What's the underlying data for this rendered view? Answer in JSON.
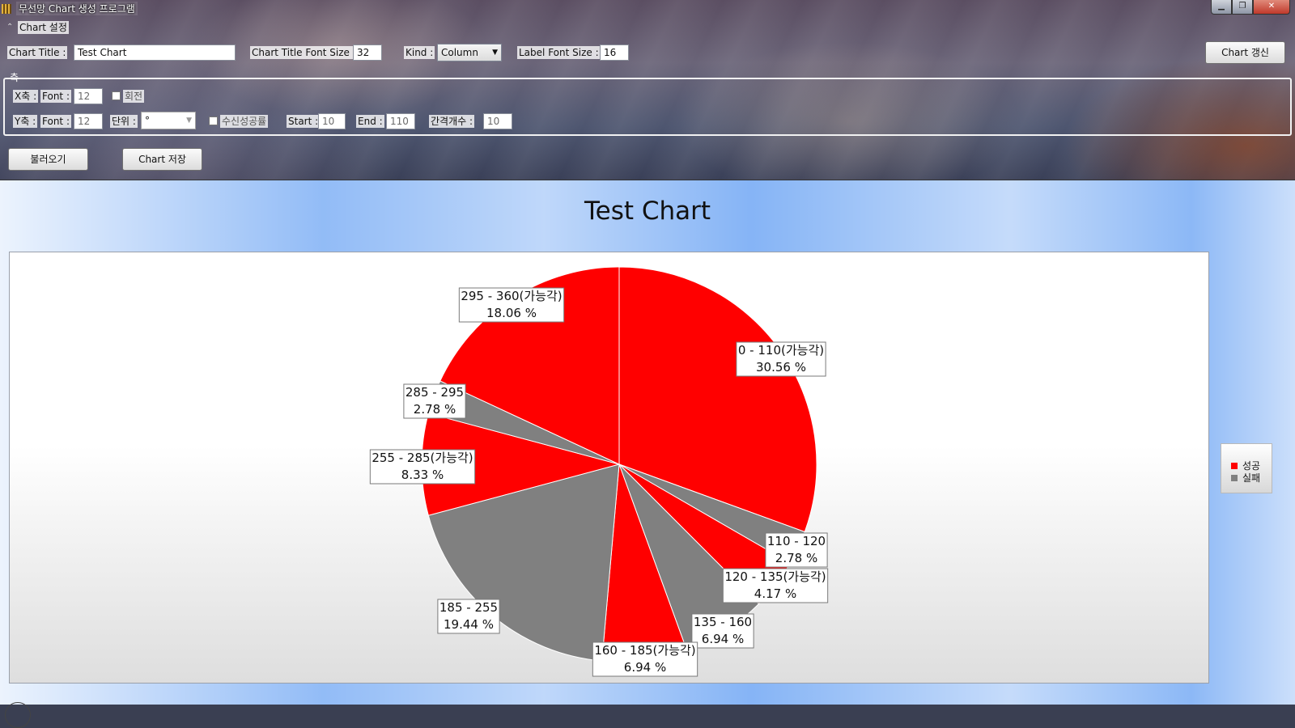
{
  "window": {
    "title": "무선망 Chart 생성 프로그램",
    "buttons": {
      "minimize": "▁",
      "restore": "❐",
      "close": "✕"
    }
  },
  "settings": {
    "expander_label": "Chart 설정",
    "chart_title_label": "Chart Title :",
    "chart_title_value": "Test Chart",
    "title_font_size_label": "Chart Title Font Size :",
    "title_font_size_value": "32",
    "kind_label": "Kind :",
    "kind_value": "Column",
    "label_font_size_label": "Label Font Size :",
    "label_font_size_value": "16",
    "refresh_button": "Chart 갱신"
  },
  "axis": {
    "group_label": "축",
    "x_label": "X축 :",
    "x_font_label": "Font :",
    "x_font_value": "12",
    "x_rotate_label": "회전",
    "y_label": "Y축 :",
    "y_font_label": "Font :",
    "y_font_value": "12",
    "unit_label": "단위 :",
    "unit_value": "°",
    "rx_success_label": "수신성공률",
    "start_label": "Start :",
    "start_value": "10",
    "end_label": "End :",
    "end_value": "110",
    "interval_label": "간격개수 :",
    "interval_value": "10"
  },
  "actions": {
    "load_button": "불러오기",
    "save_button": "Chart 저장"
  },
  "colors": {
    "success": "#ff0000",
    "failure": "#808080"
  },
  "chart_data": {
    "type": "pie",
    "title": "Test Chart",
    "start_angle_deg": 0,
    "legend": {
      "position": "right",
      "entries": [
        {
          "name": "성공",
          "color": "#ff0000"
        },
        {
          "name": "실패",
          "color": "#808080"
        }
      ]
    },
    "slices": [
      {
        "label": "0 - 110(가능각)",
        "value": 30.56,
        "pct_text": "30.56 %",
        "status": "성공"
      },
      {
        "label": "110 - 120",
        "value": 2.78,
        "pct_text": "2.78 %",
        "status": "실패"
      },
      {
        "label": "120 - 135(가능각)",
        "value": 4.17,
        "pct_text": "4.17 %",
        "status": "성공"
      },
      {
        "label": "135 - 160",
        "value": 6.94,
        "pct_text": "6.94 %",
        "status": "실패"
      },
      {
        "label": "160 - 185(가능각)",
        "value": 6.94,
        "pct_text": "6.94 %",
        "status": "성공"
      },
      {
        "label": "185 - 255",
        "value": 19.44,
        "pct_text": "19.44 %",
        "status": "실패"
      },
      {
        "label": "255 - 285(가능각)",
        "value": 8.33,
        "pct_text": "8.33 %",
        "status": "성공"
      },
      {
        "label": "285 - 295",
        "value": 2.78,
        "pct_text": "2.78 %",
        "status": "실패"
      },
      {
        "label": "295 - 360(가능각)",
        "value": 18.06,
        "pct_text": "18.06 %",
        "status": "성공"
      }
    ]
  }
}
